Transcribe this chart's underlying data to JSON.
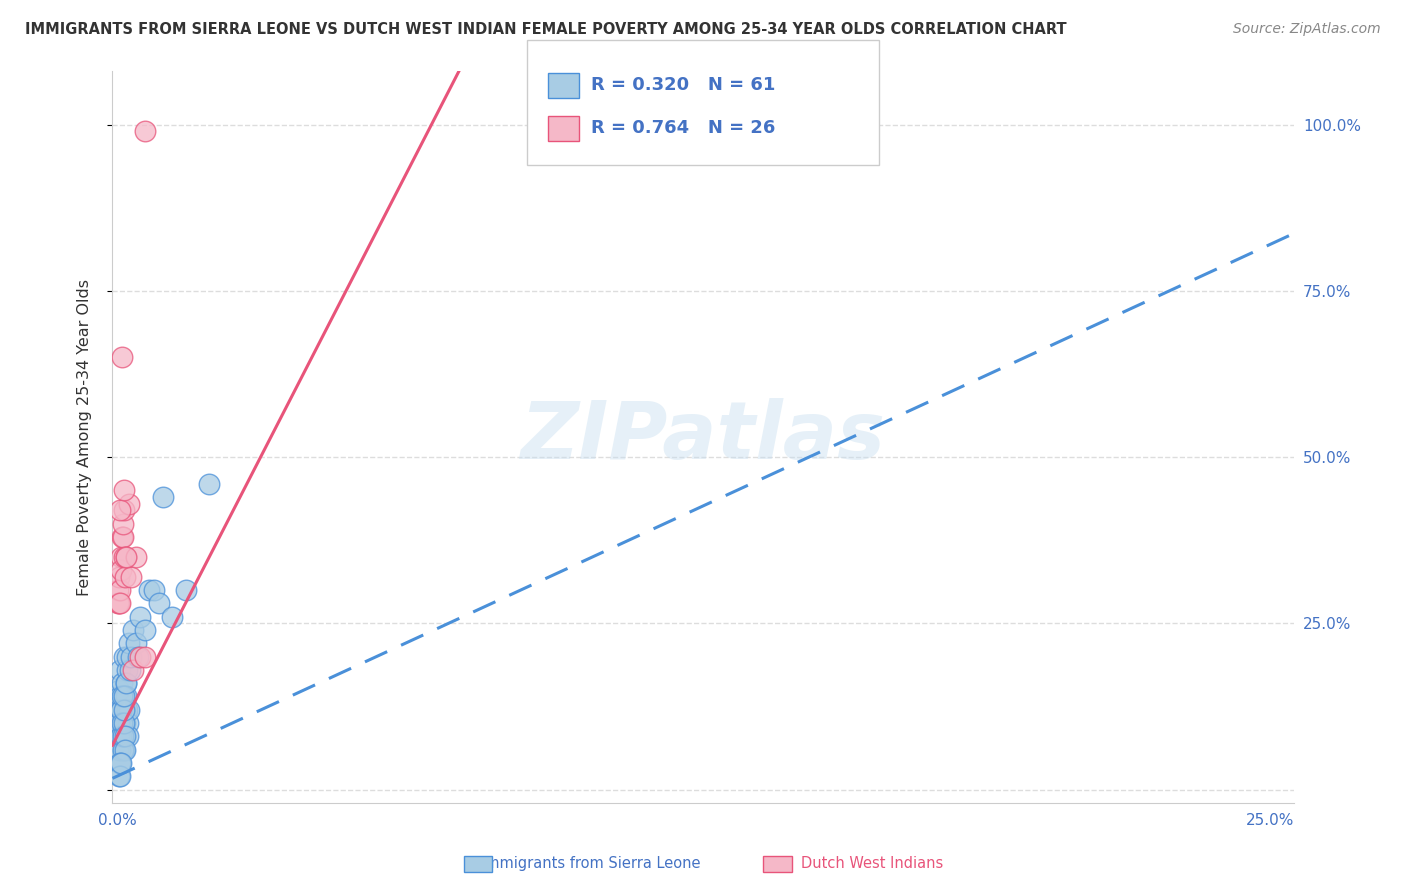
{
  "title": "IMMIGRANTS FROM SIERRA LEONE VS DUTCH WEST INDIAN FEMALE POVERTY AMONG 25-34 YEAR OLDS CORRELATION CHART",
  "source": "Source: ZipAtlas.com",
  "ylabel": "Female Poverty Among 25-34 Year Olds",
  "x_tick_labels": [
    "0.0%",
    "",
    "",
    "",
    "",
    "25.0%"
  ],
  "x_tick_values": [
    0.0,
    0.05,
    0.1,
    0.15,
    0.2,
    0.25
  ],
  "y_tick_labels": [
    "",
    "25.0%",
    "50.0%",
    "75.0%",
    "100.0%"
  ],
  "y_tick_values": [
    0.0,
    0.25,
    0.5,
    0.75,
    1.0
  ],
  "y_right_labels": [
    "",
    "25.0%",
    "50.0%",
    "75.0%",
    "100.0%"
  ],
  "xlim": [
    -0.001,
    0.255
  ],
  "ylim": [
    -0.02,
    1.08
  ],
  "legend_R1": "0.320",
  "legend_N1": "61",
  "legend_R2": "0.764",
  "legend_N2": "26",
  "color_blue": "#a8cce4",
  "color_pink": "#f5b8c8",
  "color_blue_line": "#4a90d9",
  "color_pink_line": "#e8547a",
  "color_blue_text": "#4472c4",
  "background_color": "#ffffff",
  "grid_color": "#dddddd",
  "watermark": "ZIPatlas",
  "sl_line_m": 3.2,
  "sl_line_b": 0.02,
  "dw_line_m": 13.5,
  "dw_line_b": 0.08,
  "sierra_leone_x": [
    0.0002,
    0.0003,
    0.0004,
    0.0005,
    0.0006,
    0.0007,
    0.0008,
    0.0009,
    0.001,
    0.0011,
    0.0012,
    0.0013,
    0.0014,
    0.0015,
    0.0016,
    0.0017,
    0.0018,
    0.0019,
    0.002,
    0.0021,
    0.0022,
    0.0023,
    0.0024,
    0.0025,
    0.0003,
    0.0004,
    0.0005,
    0.0006,
    0.0007,
    0.0008,
    0.0009,
    0.001,
    0.0011,
    0.0012,
    0.0013,
    0.0014,
    0.0015,
    0.0016,
    0.0017,
    0.0018,
    0.002,
    0.0022,
    0.0025,
    0.0028,
    0.003,
    0.0035,
    0.004,
    0.0045,
    0.005,
    0.006,
    0.007,
    0.008,
    0.009,
    0.01,
    0.012,
    0.015,
    0.02,
    0.0005,
    0.0006,
    0.0007,
    0.0008
  ],
  "sierra_leone_y": [
    0.1,
    0.12,
    0.08,
    0.15,
    0.14,
    0.18,
    0.1,
    0.12,
    0.16,
    0.08,
    0.1,
    0.14,
    0.06,
    0.08,
    0.2,
    0.12,
    0.1,
    0.16,
    0.14,
    0.12,
    0.18,
    0.1,
    0.08,
    0.12,
    0.06,
    0.08,
    0.1,
    0.04,
    0.06,
    0.08,
    0.12,
    0.1,
    0.14,
    0.06,
    0.08,
    0.1,
    0.12,
    0.14,
    0.08,
    0.06,
    0.16,
    0.2,
    0.22,
    0.18,
    0.2,
    0.24,
    0.22,
    0.2,
    0.26,
    0.24,
    0.3,
    0.3,
    0.28,
    0.44,
    0.26,
    0.3,
    0.46,
    0.02,
    0.04,
    0.02,
    0.04
  ],
  "dutch_west_x": [
    0.0002,
    0.0003,
    0.0004,
    0.0005,
    0.0006,
    0.0007,
    0.0008,
    0.0009,
    0.001,
    0.0012,
    0.0013,
    0.0014,
    0.0016,
    0.0018,
    0.002,
    0.0025,
    0.003,
    0.0035,
    0.004,
    0.005,
    0.006,
    0.0007,
    0.001,
    0.0015,
    0.002,
    0.006
  ],
  "dutch_west_y": [
    0.28,
    0.3,
    0.28,
    0.32,
    0.3,
    0.28,
    0.35,
    0.33,
    0.38,
    0.38,
    0.4,
    0.42,
    0.35,
    0.32,
    0.35,
    0.43,
    0.32,
    0.18,
    0.35,
    0.2,
    0.2,
    0.42,
    0.65,
    0.45,
    0.35,
    0.99
  ]
}
